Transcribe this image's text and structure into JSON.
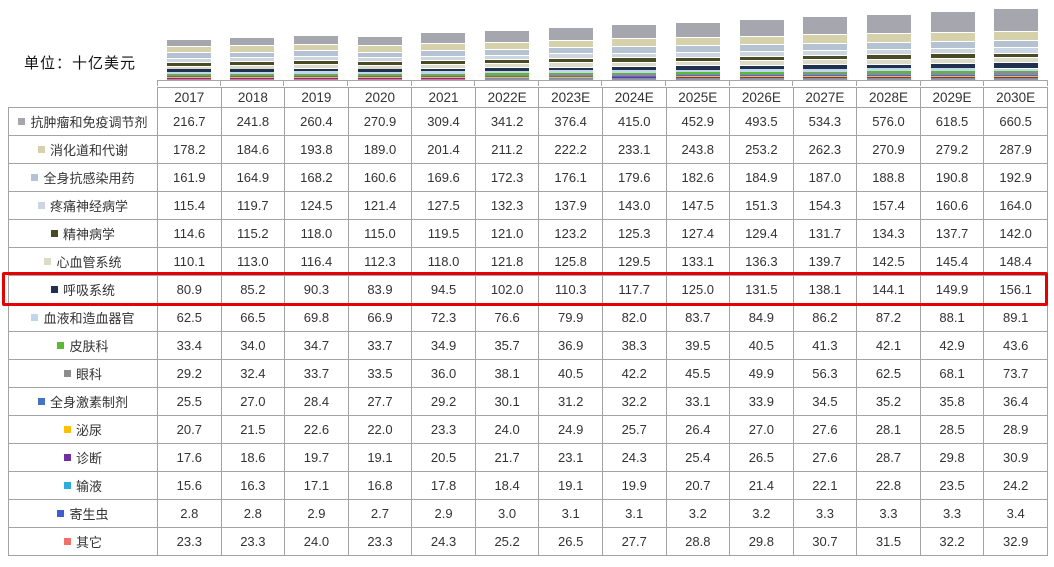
{
  "unit_label": "单位：十亿美元",
  "colors": {
    "highlight_border": "#e60000",
    "table_border": "#a3a3a3",
    "axis": "#a6a6a6",
    "text": "#333333"
  },
  "chart_data": {
    "type": "bar",
    "stacked": true,
    "title": "",
    "unit": "十亿美元",
    "legend_position": "table-rows-left",
    "grid": false,
    "categories": [
      "2017",
      "2018",
      "2019",
      "2020",
      "2021",
      "2022E",
      "2023E",
      "2024E",
      "2025E",
      "2026E",
      "2027E",
      "2028E",
      "2029E",
      "2030E"
    ],
    "series": [
      {
        "name": "抗肿瘤和免疫调节剂",
        "color": "#a6a7ae",
        "highlighted": false,
        "values": [
          216.7,
          241.8,
          260.4,
          270.9,
          309.4,
          341.2,
          376.4,
          415.0,
          452.9,
          493.5,
          534.3,
          576.0,
          618.5,
          660.5
        ]
      },
      {
        "name": "消化道和代谢",
        "color": "#d4d1ab",
        "highlighted": false,
        "values": [
          178.2,
          184.6,
          193.8,
          189.0,
          201.4,
          211.2,
          222.2,
          233.1,
          243.8,
          253.2,
          262.3,
          270.9,
          279.2,
          287.9
        ]
      },
      {
        "name": "全身抗感染用药",
        "color": "#b4c2d2",
        "highlighted": false,
        "values": [
          161.9,
          164.9,
          168.2,
          160.6,
          169.6,
          172.3,
          176.1,
          179.6,
          182.6,
          184.9,
          187.0,
          188.8,
          190.8,
          192.9
        ]
      },
      {
        "name": "疼痛神经病学",
        "color": "#ccd6e1",
        "highlighted": false,
        "values": [
          115.4,
          119.7,
          124.5,
          121.4,
          127.5,
          132.3,
          137.9,
          143.0,
          147.5,
          151.3,
          154.3,
          157.4,
          160.6,
          164.0
        ]
      },
      {
        "name": "精神病学",
        "color": "#4a4a24",
        "highlighted": false,
        "values": [
          114.6,
          115.2,
          118.0,
          115.0,
          119.5,
          121.0,
          123.2,
          125.3,
          127.4,
          129.4,
          131.7,
          134.3,
          137.7,
          142.0
        ]
      },
      {
        "name": "心血管系统",
        "color": "#dbdbc7",
        "highlighted": false,
        "values": [
          110.1,
          113.0,
          116.4,
          112.3,
          118.0,
          121.8,
          125.8,
          129.5,
          133.1,
          136.3,
          139.7,
          142.5,
          145.4,
          148.4
        ]
      },
      {
        "name": "呼吸系统",
        "color": "#20314f",
        "highlighted": true,
        "values": [
          80.9,
          85.2,
          90.3,
          83.9,
          94.5,
          102.0,
          110.3,
          117.7,
          125.0,
          131.5,
          138.1,
          144.1,
          149.9,
          156.1
        ]
      },
      {
        "name": "血液和造血器官",
        "color": "#c0d6ea",
        "highlighted": false,
        "values": [
          62.5,
          66.5,
          69.8,
          66.9,
          72.3,
          76.6,
          79.9,
          82.0,
          83.7,
          84.9,
          86.2,
          87.2,
          88.1,
          89.1
        ]
      },
      {
        "name": "皮肤科",
        "color": "#5cb933",
        "highlighted": false,
        "values": [
          33.4,
          34.0,
          34.7,
          33.7,
          34.9,
          35.7,
          36.9,
          38.3,
          39.5,
          40.5,
          41.3,
          42.1,
          42.9,
          43.6
        ]
      },
      {
        "name": "眼科",
        "color": "#8c8c8c",
        "highlighted": false,
        "values": [
          29.2,
          32.4,
          33.7,
          33.5,
          36.0,
          38.1,
          40.5,
          42.2,
          45.5,
          49.9,
          56.3,
          62.5,
          68.1,
          73.7
        ]
      },
      {
        "name": "全身激素制剂",
        "color": "#4472c4",
        "highlighted": false,
        "values": [
          25.5,
          27.0,
          28.4,
          27.7,
          29.2,
          30.1,
          31.2,
          32.2,
          33.1,
          33.9,
          34.5,
          35.2,
          35.8,
          36.4
        ]
      },
      {
        "name": "泌尿",
        "color": "#ffc000",
        "highlighted": false,
        "values": [
          20.7,
          21.5,
          22.6,
          22.0,
          23.3,
          24.0,
          24.9,
          25.7,
          26.4,
          27.0,
          27.6,
          28.1,
          28.5,
          28.9
        ]
      },
      {
        "name": "诊断",
        "color": "#7030a0",
        "highlighted": false,
        "values": [
          17.6,
          18.6,
          19.7,
          19.1,
          20.5,
          21.7,
          23.1,
          24.3,
          25.4,
          26.5,
          27.6,
          28.7,
          29.8,
          30.9
        ]
      },
      {
        "name": "输液",
        "color": "#2aaede",
        "highlighted": false,
        "values": [
          15.6,
          16.3,
          17.1,
          16.8,
          17.8,
          18.4,
          19.1,
          19.9,
          20.7,
          21.4,
          22.1,
          22.8,
          23.5,
          24.2
        ]
      },
      {
        "name": "寄生虫",
        "color": "#3d5ecc",
        "highlighted": false,
        "values": [
          2.8,
          2.8,
          2.9,
          2.7,
          2.9,
          3.0,
          3.1,
          3.1,
          3.2,
          3.2,
          3.3,
          3.3,
          3.3,
          3.4
        ]
      },
      {
        "name": "其它",
        "color": "#f2706a",
        "highlighted": false,
        "values": [
          23.3,
          23.3,
          24.0,
          23.3,
          24.3,
          25.2,
          26.5,
          27.7,
          28.8,
          29.8,
          30.7,
          31.5,
          32.2,
          32.9
        ]
      }
    ]
  }
}
